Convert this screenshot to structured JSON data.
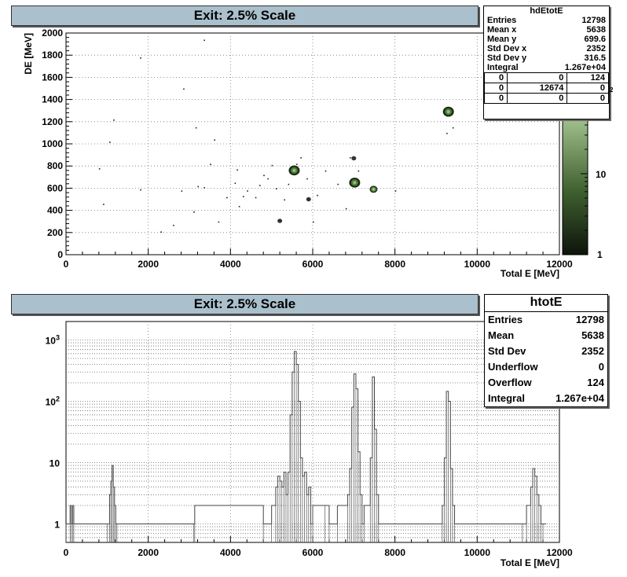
{
  "top": {
    "title": "Exit: 2.5% Scale",
    "stats": {
      "name": "hdEtotE",
      "rows": [
        {
          "label": "Entries",
          "value": "12798"
        },
        {
          "label": "Mean x",
          "value": "5638"
        },
        {
          "label": "Mean y",
          "value": "699.6"
        },
        {
          "label": "Std Dev x",
          "value": "2352"
        },
        {
          "label": "Std Dev y",
          "value": "316.5"
        },
        {
          "label": "Integral",
          "value": "1.267e+04"
        }
      ],
      "cells": [
        [
          "0",
          "0",
          "124"
        ],
        [
          "0",
          "12674",
          "0"
        ],
        [
          "0",
          "0",
          "0"
        ]
      ],
      "superscript": "2"
    },
    "palette_labels": [
      "10",
      "1"
    ]
  },
  "bottom": {
    "title": "Exit: 2.5% Scale",
    "stats": {
      "name": "htotE",
      "rows": [
        {
          "label": "Entries",
          "value": "12798"
        },
        {
          "label": "Mean",
          "value": "5638"
        },
        {
          "label": "Std Dev",
          "value": "2352"
        },
        {
          "label": "Underflow",
          "value": "0"
        },
        {
          "label": "Overflow",
          "value": "124"
        },
        {
          "label": "Integral",
          "value": "1.267e+04"
        }
      ]
    }
  },
  "chart_data": [
    {
      "type": "heatmap",
      "title": "Exit: 2.5% Scale",
      "xlabel": "Total E [MeV]",
      "ylabel": "DE [MeV]",
      "xlim": [
        0,
        12000
      ],
      "ylim": [
        0,
        2000
      ],
      "x_ticks": [
        "0",
        "2000",
        "4000",
        "6000",
        "8000",
        "10000",
        "12000"
      ],
      "y_ticks": [
        "0",
        "200",
        "400",
        "600",
        "800",
        "1000",
        "1200",
        "1400",
        "1600",
        "1800",
        "2000"
      ],
      "grid": true,
      "z_scale": "log",
      "colormap": "green-black",
      "clusters": [
        {
          "x": 5550,
          "y": 760,
          "intensity": "high"
        },
        {
          "x": 7020,
          "y": 650,
          "intensity": "high"
        },
        {
          "x": 7480,
          "y": 590,
          "intensity": "medium"
        },
        {
          "x": 9300,
          "y": 1290,
          "intensity": "high"
        },
        {
          "x": 5200,
          "y": 305,
          "intensity": "low"
        },
        {
          "x": 5900,
          "y": 500,
          "intensity": "low"
        },
        {
          "x": 7000,
          "y": 870,
          "intensity": "low"
        }
      ],
      "sparse_points": [
        [
          1050,
          1020
        ],
        [
          1150,
          1220
        ],
        [
          1800,
          1780
        ],
        [
          3350,
          1940
        ],
        [
          2850,
          1500
        ],
        [
          3150,
          1150
        ],
        [
          2800,
          580
        ],
        [
          3100,
          390
        ],
        [
          2300,
          210
        ],
        [
          2600,
          270
        ],
        [
          1800,
          590
        ],
        [
          800,
          780
        ],
        [
          3600,
          1040
        ],
        [
          3350,
          610
        ],
        [
          3700,
          300
        ],
        [
          4100,
          650
        ],
        [
          4400,
          580
        ],
        [
          4600,
          520
        ],
        [
          4200,
          440
        ],
        [
          4800,
          720
        ],
        [
          5000,
          810
        ],
        [
          5100,
          600
        ],
        [
          5300,
          500
        ],
        [
          5850,
          690
        ],
        [
          6100,
          540
        ],
        [
          6300,
          760
        ],
        [
          6900,
          880
        ],
        [
          7100,
          760
        ],
        [
          6600,
          640
        ],
        [
          8000,
          580
        ],
        [
          9250,
          1100
        ],
        [
          9400,
          1150
        ],
        [
          3200,
          620
        ],
        [
          4700,
          630
        ],
        [
          4900,
          690
        ],
        [
          5400,
          640
        ],
        [
          5700,
          880
        ],
        [
          6000,
          300
        ],
        [
          6800,
          420
        ],
        [
          3900,
          520
        ],
        [
          900,
          460
        ],
        [
          4150,
          770
        ],
        [
          3500,
          820
        ],
        [
          4300,
          530
        ],
        [
          5600,
          820
        ]
      ]
    },
    {
      "type": "line",
      "title": "Exit: 2.5% Scale",
      "xlabel": "Total E [MeV]",
      "ylabel": "",
      "xlim": [
        0,
        12000
      ],
      "ylim": [
        0.5,
        2000
      ],
      "y_scale": "log",
      "x_ticks": [
        "0",
        "2000",
        "4000",
        "6000",
        "8000",
        "10000",
        "12000"
      ],
      "y_ticks": [
        "1",
        "10",
        "10^2",
        "10^3"
      ],
      "grid": true,
      "x": [
        0,
        100,
        130,
        160,
        190,
        1000,
        1060,
        1090,
        1120,
        1150,
        1180,
        1210,
        1240,
        3100,
        3130,
        4800,
        5000,
        5100,
        5150,
        5200,
        5250,
        5300,
        5350,
        5400,
        5450,
        5500,
        5550,
        5600,
        5650,
        5700,
        5750,
        5800,
        5850,
        5900,
        5950,
        6000,
        6300,
        6400,
        6600,
        6850,
        6900,
        6950,
        7000,
        7050,
        7100,
        7150,
        7200,
        7250,
        7400,
        7450,
        7500,
        7550,
        7600,
        9150,
        9200,
        9250,
        9300,
        9350,
        9400,
        9450,
        11100,
        11200,
        11300,
        11350,
        11400,
        11450,
        11500,
        11550,
        11600
      ],
      "values": [
        1,
        2,
        1,
        2,
        1,
        1,
        3,
        5,
        9,
        4,
        2,
        1,
        1,
        1,
        2,
        1,
        2,
        4,
        6,
        5,
        4,
        7,
        3,
        7,
        60,
        300,
        650,
        400,
        100,
        12,
        6,
        7,
        3,
        4,
        1,
        2,
        2,
        1,
        2,
        3,
        8,
        80,
        280,
        160,
        15,
        3,
        1,
        2,
        12,
        250,
        35,
        3,
        1,
        2,
        12,
        145,
        100,
        8,
        2,
        1,
        1,
        2,
        4,
        8,
        6,
        3,
        2,
        1,
        1
      ]
    }
  ]
}
